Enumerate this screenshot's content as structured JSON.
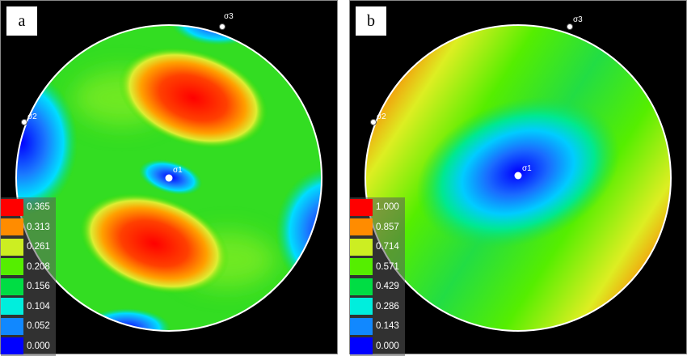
{
  "panels": [
    {
      "label": "a",
      "points": [
        "σ1",
        "σ2",
        "σ3"
      ],
      "legend": [
        "0.365",
        "0.313",
        "0.261",
        "0.208",
        "0.156",
        "0.104",
        "0.052",
        "0.000"
      ]
    },
    {
      "label": "b",
      "points": [
        "σ1",
        "σ2",
        "σ3"
      ],
      "legend": [
        "1.000",
        "0.857",
        "0.714",
        "0.571",
        "0.429",
        "0.286",
        "0.143",
        "0.000"
      ]
    }
  ],
  "legend_colors": [
    "#ff0000",
    "#ff8c00",
    "#ccee22",
    "#55ee00",
    "#00dd44",
    "#00eedd",
    "#1188ff",
    "#0000ff"
  ]
}
